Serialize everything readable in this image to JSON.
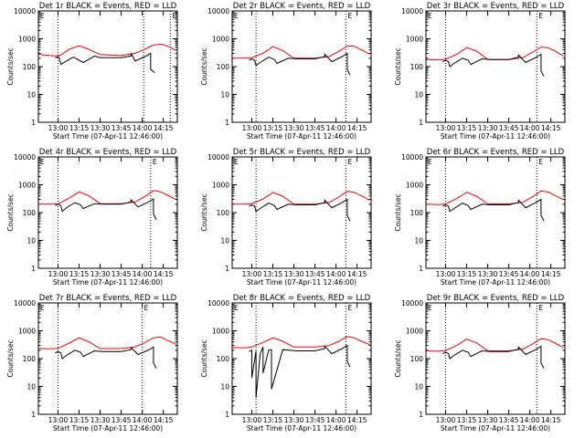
{
  "figure": {
    "xlabel": "Start Time (07-Apr-11 12:46:00)",
    "ylabel": "Counts/sec"
  },
  "chart_data": [
    {
      "type": "line",
      "title": "Det 1r BLACK = Events, RED = LLD",
      "ylabel": "Counts/sec",
      "xlabel": "Start Time (07-Apr-11 12:46:00)",
      "yscale": "log",
      "ylim": [
        1,
        10000
      ],
      "yticks": [
        "1",
        "10",
        "100",
        "1000",
        "10000"
      ],
      "xlim": [
        "12:46",
        "14:25"
      ],
      "xticks": [
        "13:00",
        "13:15",
        "13:30",
        "13:45",
        "14:00",
        "14:15"
      ],
      "vlines": [
        "13:00",
        "14:01",
        "14:20"
      ],
      "flag_label": "E",
      "series": [
        {
          "name": "LLD",
          "color": "#ff0000",
          "x": [
            "12:46",
            "12:50",
            "12:58",
            "13:02",
            "13:08",
            "13:15",
            "13:22",
            "13:30",
            "13:45",
            "13:55",
            "14:02",
            "14:08",
            "14:14",
            "14:20",
            "14:24"
          ],
          "y": [
            280,
            260,
            240,
            260,
            420,
            560,
            420,
            270,
            250,
            300,
            420,
            600,
            640,
            500,
            380
          ]
        },
        {
          "name": "Events",
          "color": "#000000",
          "x": [
            "12:58",
            "13:00",
            "13:01",
            "13:02",
            "13:06",
            "13:11",
            "13:14",
            "13:18",
            "13:26",
            "13:30",
            "13:45",
            "13:52",
            "13:52",
            "13:55",
            "14:02",
            "14:06",
            "14:06",
            "14:09"
          ],
          "y": [
            200,
            230,
            200,
            120,
            160,
            220,
            180,
            140,
            240,
            210,
            210,
            240,
            300,
            160,
            230,
            300,
            80,
            60
          ]
        }
      ]
    },
    {
      "type": "line",
      "title": "Det 2r BLACK = Events, RED = LLD",
      "ylabel": "Counts/sec",
      "xlabel": "Start Time (07-Apr-11 12:46:00)",
      "yscale": "log",
      "ylim": [
        1,
        10000
      ],
      "yticks": [
        "1",
        "10",
        "100",
        "1000",
        "10000"
      ],
      "xlim": [
        "12:46",
        "14:25"
      ],
      "xticks": [
        "13:00",
        "13:15",
        "13:30",
        "13:45",
        "14:00",
        "14:15"
      ],
      "vlines": [
        "13:03",
        "14:07"
      ],
      "flag_label": "E",
      "series": [
        {
          "name": "LLD",
          "color": "#ff0000",
          "x": [
            "12:46",
            "12:55",
            "13:00",
            "13:08",
            "13:15",
            "13:22",
            "13:30",
            "13:45",
            "13:55",
            "14:02",
            "14:08",
            "14:13",
            "14:18",
            "14:24"
          ],
          "y": [
            200,
            200,
            210,
            300,
            520,
            380,
            200,
            200,
            230,
            350,
            560,
            540,
            400,
            280
          ]
        },
        {
          "name": "Events",
          "color": "#000000",
          "x": [
            "12:58",
            "13:00",
            "13:02",
            "13:03",
            "13:06",
            "13:12",
            "13:16",
            "13:18",
            "13:26",
            "13:32",
            "13:45",
            "13:52",
            "13:52",
            "13:57",
            "14:05",
            "14:08",
            "14:08",
            "14:10"
          ],
          "y": [
            170,
            190,
            170,
            110,
            140,
            220,
            180,
            130,
            200,
            190,
            190,
            230,
            280,
            150,
            240,
            300,
            80,
            50
          ]
        }
      ]
    },
    {
      "type": "line",
      "title": "Det 3r BLACK = Events, RED = LLD",
      "ylabel": "Counts/sec",
      "xlabel": "Start Time (07-Apr-11 12:46:00)",
      "yscale": "log",
      "ylim": [
        1,
        10000
      ],
      "yticks": [
        "1",
        "10",
        "100",
        "1000",
        "10000"
      ],
      "xlim": [
        "12:46",
        "14:25"
      ],
      "xticks": [
        "13:00",
        "13:15",
        "13:30",
        "13:45",
        "14:00",
        "14:15"
      ],
      "vlines": [
        "13:00",
        "14:05"
      ],
      "flag_label": "E",
      "series": [
        {
          "name": "LLD",
          "color": "#ff0000",
          "x": [
            "12:46",
            "12:55",
            "13:00",
            "13:08",
            "13:15",
            "13:22",
            "13:30",
            "13:45",
            "13:55",
            "14:02",
            "14:08",
            "14:13",
            "14:18",
            "14:24"
          ],
          "y": [
            180,
            175,
            185,
            280,
            480,
            360,
            180,
            180,
            210,
            330,
            500,
            480,
            360,
            240
          ]
        },
        {
          "name": "Events",
          "color": "#000000",
          "x": [
            "12:58",
            "13:00",
            "13:02",
            "13:03",
            "13:06",
            "13:12",
            "13:16",
            "13:18",
            "13:26",
            "13:32",
            "13:45",
            "13:52",
            "13:52",
            "13:57",
            "14:05",
            "14:08",
            "14:08",
            "14:10"
          ],
          "y": [
            150,
            170,
            150,
            100,
            130,
            200,
            170,
            120,
            190,
            180,
            180,
            220,
            260,
            140,
            220,
            280,
            70,
            45
          ]
        }
      ]
    },
    {
      "type": "line",
      "title": "Det 4r BLACK = Events, RED = LLD",
      "ylabel": "Counts/sec",
      "xlabel": "Start Time (07-Apr-11 12:46:00)",
      "yscale": "log",
      "ylim": [
        1,
        10000
      ],
      "yticks": [
        "1",
        "10",
        "100",
        "1000",
        "10000"
      ],
      "xlim": [
        "12:46",
        "14:25"
      ],
      "xticks": [
        "13:00",
        "13:15",
        "13:30",
        "13:45",
        "14:00",
        "14:15"
      ],
      "vlines": [
        "13:00",
        "14:06"
      ],
      "flag_label": "E",
      "series": [
        {
          "name": "LLD",
          "color": "#ff0000",
          "x": [
            "12:46",
            "12:55",
            "13:00",
            "13:08",
            "13:15",
            "13:22",
            "13:30",
            "13:45",
            "13:55",
            "14:02",
            "14:08",
            "14:13",
            "14:18",
            "14:24"
          ],
          "y": [
            200,
            200,
            210,
            330,
            560,
            400,
            210,
            210,
            240,
            380,
            620,
            560,
            420,
            300
          ]
        },
        {
          "name": "Events",
          "color": "#000000",
          "x": [
            "12:58",
            "13:00",
            "13:02",
            "13:03",
            "13:06",
            "13:12",
            "13:16",
            "13:18",
            "13:26",
            "13:32",
            "13:45",
            "13:52",
            "13:52",
            "13:57",
            "14:05",
            "14:08",
            "14:08",
            "14:10"
          ],
          "y": [
            180,
            200,
            180,
            110,
            150,
            230,
            190,
            140,
            210,
            200,
            200,
            240,
            290,
            160,
            250,
            310,
            90,
            55
          ]
        }
      ]
    },
    {
      "type": "line",
      "title": "Det 5r BLACK = Events, RED = LLD",
      "ylabel": "Counts/sec",
      "xlabel": "Start Time (07-Apr-11 12:46:00)",
      "yscale": "log",
      "ylim": [
        1,
        10000
      ],
      "yticks": [
        "1",
        "10",
        "100",
        "1000",
        "10000"
      ],
      "xlim": [
        "12:46",
        "14:25"
      ],
      "xticks": [
        "13:00",
        "13:15",
        "13:30",
        "13:45",
        "14:00",
        "14:15"
      ],
      "vlines": [
        "13:03",
        "14:07"
      ],
      "flag_label": "E",
      "series": [
        {
          "name": "LLD",
          "color": "#ff0000",
          "x": [
            "12:46",
            "12:55",
            "13:00",
            "13:08",
            "13:15",
            "13:22",
            "13:30",
            "13:45",
            "13:55",
            "14:02",
            "14:08",
            "14:13",
            "14:18",
            "14:24"
          ],
          "y": [
            200,
            200,
            210,
            310,
            530,
            390,
            200,
            200,
            230,
            360,
            580,
            540,
            400,
            280
          ]
        },
        {
          "name": "Events",
          "color": "#000000",
          "x": [
            "12:58",
            "13:00",
            "13:02",
            "13:03",
            "13:06",
            "13:12",
            "13:16",
            "13:18",
            "13:26",
            "13:32",
            "13:45",
            "13:52",
            "13:52",
            "13:57",
            "14:05",
            "14:08",
            "14:08",
            "14:10"
          ],
          "y": [
            170,
            190,
            170,
            110,
            140,
            220,
            180,
            130,
            200,
            190,
            190,
            230,
            280,
            150,
            240,
            300,
            80,
            50
          ]
        }
      ]
    },
    {
      "type": "line",
      "title": "Det 6r BLACK = Events, RED = LLD",
      "ylabel": "Counts/sec",
      "xlabel": "Start Time (07-Apr-11 12:46:00)",
      "yscale": "log",
      "ylim": [
        1,
        10000
      ],
      "yticks": [
        "1",
        "10",
        "100",
        "1000",
        "10000"
      ],
      "xlim": [
        "12:46",
        "14:25"
      ],
      "xticks": [
        "13:00",
        "13:15",
        "13:30",
        "13:45",
        "14:00",
        "14:15"
      ],
      "vlines": [
        "13:00",
        "14:05"
      ],
      "flag_label": "E",
      "series": [
        {
          "name": "LLD",
          "color": "#ff0000",
          "x": [
            "12:46",
            "12:55",
            "13:00",
            "13:08",
            "13:15",
            "13:22",
            "13:30",
            "13:45",
            "13:55",
            "14:02",
            "14:08",
            "14:13",
            "14:18",
            "14:24"
          ],
          "y": [
            200,
            195,
            205,
            320,
            540,
            390,
            205,
            205,
            235,
            370,
            600,
            550,
            410,
            290
          ]
        },
        {
          "name": "Events",
          "color": "#000000",
          "x": [
            "12:58",
            "13:00",
            "13:02",
            "13:03",
            "13:06",
            "13:12",
            "13:16",
            "13:18",
            "13:26",
            "13:32",
            "13:45",
            "13:52",
            "13:52",
            "13:57",
            "14:05",
            "14:08",
            "14:08",
            "14:10"
          ],
          "y": [
            170,
            190,
            170,
            110,
            140,
            220,
            180,
            130,
            200,
            190,
            190,
            230,
            280,
            150,
            240,
            300,
            80,
            50
          ]
        }
      ]
    },
    {
      "type": "line",
      "title": "Det 7r BLACK = Events, RED = LLD",
      "ylabel": "Counts/sec",
      "xlabel": "Start Time (07-Apr-11 12:46:00)",
      "yscale": "log",
      "ylim": [
        1,
        10000
      ],
      "yticks": [
        "1",
        "10",
        "100",
        "1000",
        "10000"
      ],
      "xlim": [
        "12:46",
        "14:25"
      ],
      "xticks": [
        "13:00",
        "13:15",
        "13:30",
        "13:45",
        "14:00",
        "14:15"
      ],
      "vlines": [
        "13:00",
        "14:00"
      ],
      "flag_label": "E",
      "series": [
        {
          "name": "LLD",
          "color": "#ff0000",
          "x": [
            "12:46",
            "12:55",
            "13:00",
            "13:08",
            "13:15",
            "13:22",
            "13:30",
            "13:45",
            "13:55",
            "14:02",
            "14:08",
            "14:13",
            "14:18",
            "14:24"
          ],
          "y": [
            230,
            225,
            235,
            360,
            560,
            400,
            230,
            230,
            260,
            380,
            560,
            600,
            450,
            330
          ]
        },
        {
          "name": "Events",
          "color": "#000000",
          "x": [
            "12:58",
            "13:00",
            "13:02",
            "13:03",
            "13:06",
            "13:12",
            "13:16",
            "13:18",
            "13:26",
            "13:32",
            "13:45",
            "13:52",
            "13:52",
            "13:57",
            "14:05",
            "14:08",
            "14:08",
            "14:10"
          ],
          "y": [
            160,
            180,
            160,
            100,
            130,
            200,
            170,
            120,
            190,
            180,
            180,
            210,
            250,
            140,
            210,
            260,
            70,
            45
          ]
        }
      ]
    },
    {
      "type": "line",
      "title": "Det 8r BLACK = Events, RED = LLD",
      "ylabel": "Counts/sec",
      "xlabel": "Start Time (07-Apr-11 12:46:00)",
      "yscale": "log",
      "ylim": [
        1,
        10000
      ],
      "yticks": [
        "1",
        "10",
        "100",
        "1000",
        "10000"
      ],
      "xlim": [
        "12:46",
        "14:25"
      ],
      "xticks": [
        "13:00",
        "13:15",
        "13:30",
        "13:45",
        "14:00",
        "14:15"
      ],
      "vlines": [
        "13:03",
        "14:07"
      ],
      "flag_label": "E",
      "series": [
        {
          "name": "LLD",
          "color": "#ff0000",
          "x": [
            "12:46",
            "12:55",
            "13:00",
            "13:08",
            "13:15",
            "13:22",
            "13:30",
            "13:45",
            "13:55",
            "14:02",
            "14:08",
            "14:13",
            "14:18",
            "14:24"
          ],
          "y": [
            250,
            245,
            260,
            380,
            560,
            420,
            260,
            260,
            290,
            420,
            620,
            560,
            420,
            320
          ]
        },
        {
          "name": "Events",
          "color": "#000000",
          "x": [
            "12:58",
            "13:00",
            "13:00",
            "13:03",
            "13:03",
            "13:06",
            "13:08",
            "13:08",
            "13:12",
            "13:14",
            "13:14",
            "13:22",
            "13:32",
            "13:45",
            "13:52",
            "13:52",
            "13:57",
            "14:05",
            "14:08",
            "14:08",
            "14:10"
          ],
          "y": [
            180,
            200,
            20,
            190,
            4,
            150,
            260,
            30,
            200,
            210,
            8,
            210,
            190,
            190,
            230,
            280,
            150,
            240,
            300,
            80,
            50
          ]
        }
      ]
    },
    {
      "type": "line",
      "title": "Det 9r BLACK = Events, RED = LLD",
      "ylabel": "Counts/sec",
      "xlabel": "Start Time (07-Apr-11 12:46:00)",
      "yscale": "log",
      "ylim": [
        1,
        10000
      ],
      "yticks": [
        "1",
        "10",
        "100",
        "1000",
        "10000"
      ],
      "xlim": [
        "12:46",
        "14:25"
      ],
      "xticks": [
        "13:00",
        "13:15",
        "13:30",
        "13:45",
        "14:00",
        "14:15"
      ],
      "vlines": [
        "13:00",
        "14:05"
      ],
      "flag_label": "E",
      "series": [
        {
          "name": "LLD",
          "color": "#ff0000",
          "x": [
            "12:46",
            "12:55",
            "13:00",
            "13:08",
            "13:15",
            "13:22",
            "13:30",
            "13:45",
            "13:55",
            "14:02",
            "14:08",
            "14:13",
            "14:18",
            "14:24"
          ],
          "y": [
            190,
            185,
            195,
            300,
            500,
            370,
            190,
            190,
            220,
            340,
            520,
            480,
            360,
            250
          ]
        },
        {
          "name": "Events",
          "color": "#000000",
          "x": [
            "12:58",
            "13:00",
            "13:02",
            "13:03",
            "13:06",
            "13:12",
            "13:16",
            "13:18",
            "13:26",
            "13:32",
            "13:45",
            "13:52",
            "13:52",
            "13:57",
            "14:05",
            "14:08",
            "14:08",
            "14:10"
          ],
          "y": [
            150,
            170,
            150,
            100,
            130,
            200,
            170,
            120,
            190,
            180,
            180,
            220,
            260,
            140,
            220,
            280,
            70,
            45
          ]
        }
      ]
    }
  ]
}
